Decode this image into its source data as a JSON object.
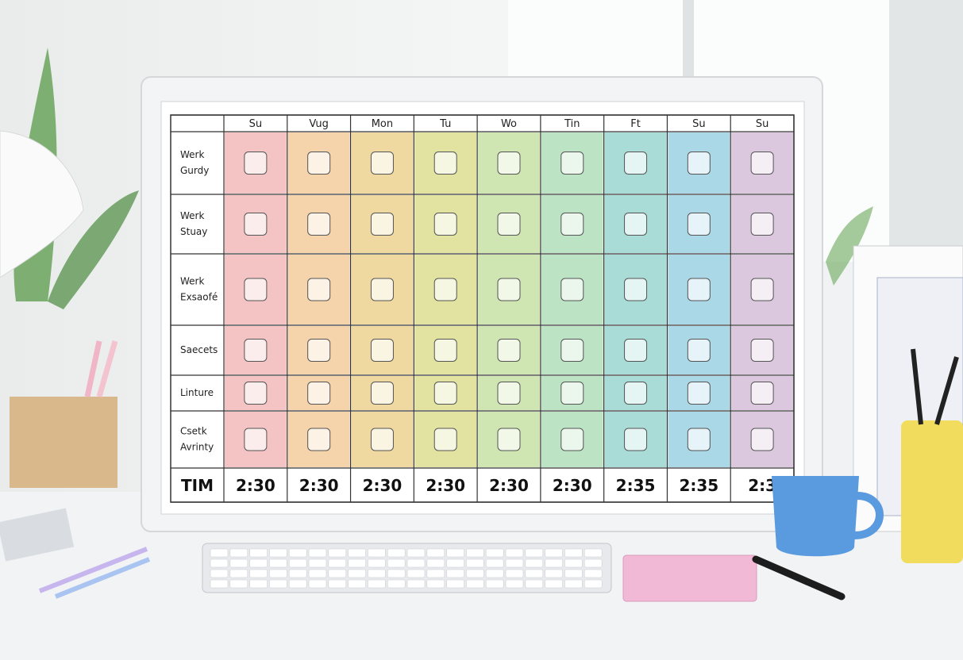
{
  "schedule": {
    "columns": [
      "Su",
      "Vug",
      "Mon",
      "Tu",
      "Wo",
      "Tin",
      "Ft",
      "Su",
      "Su"
    ],
    "rows": [
      [
        "Werk",
        "Gurdy"
      ],
      [
        "Werk",
        "Stuay"
      ],
      [
        "Werk",
        "Exsaofé"
      ],
      [
        "Saecets"
      ],
      [
        "Linture"
      ],
      [
        "Csetk",
        "Avrinty"
      ]
    ],
    "time_label": "TIM",
    "times": [
      "2:30",
      "2:30",
      "2:30",
      "2:30",
      "2:30",
      "2:30",
      "2:35",
      "2:35",
      "2:3"
    ]
  }
}
